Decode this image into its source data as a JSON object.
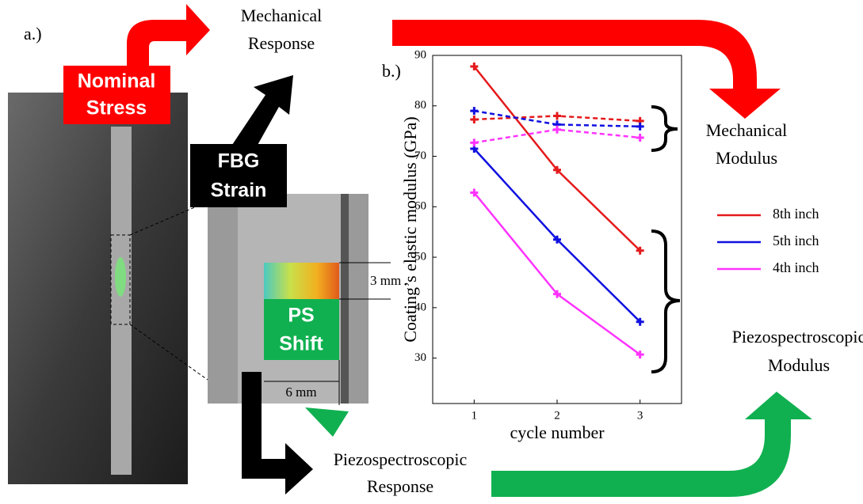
{
  "labels": {
    "panel_a": "a.)",
    "panel_b": "b.)",
    "nominal_stress": [
      "Nominal",
      "Stress"
    ],
    "fbg_strain": [
      "FBG",
      "Strain"
    ],
    "ps_shift": [
      "PS",
      "Shift"
    ],
    "mechanical_response": [
      "Mechanical",
      "Response"
    ],
    "piezo_response": [
      "Piezospectroscopic",
      "Response"
    ],
    "mechanical_modulus": [
      "Mechanical",
      "Modulus"
    ],
    "piezo_modulus": [
      "Piezospectroscopic",
      "Modulus"
    ],
    "height_dim": "3 mm",
    "width_dim": "6 mm"
  },
  "chart_data": {
    "type": "line",
    "x_label": "cycle number",
    "y_label": "Coating’s elastic modulus (GPa)",
    "x": [
      1,
      2,
      3
    ],
    "xlim": [
      0.5,
      3.5
    ],
    "xticks": [
      1,
      2,
      3
    ],
    "ylim": [
      21,
      90
    ],
    "yticks": [
      30,
      40,
      50,
      60,
      70,
      80,
      90
    ],
    "series": [
      {
        "name": "8th inch",
        "color": "#e41a1c",
        "values": [
          87.8,
          67.3,
          51.3
        ],
        "mechanical_values": [
          77.3,
          78,
          77
        ]
      },
      {
        "name": "5th inch",
        "color": "#1010e0",
        "values": [
          71.5,
          53.5,
          37.2
        ],
        "mechanical_values": [
          79,
          76.3,
          75.9
        ]
      },
      {
        "name": "4th inch",
        "color": "#ff33ff",
        "values": [
          62.8,
          42.7,
          30.7
        ],
        "mechanical_values": [
          72.7,
          75.3,
          73.7
        ]
      }
    ]
  }
}
